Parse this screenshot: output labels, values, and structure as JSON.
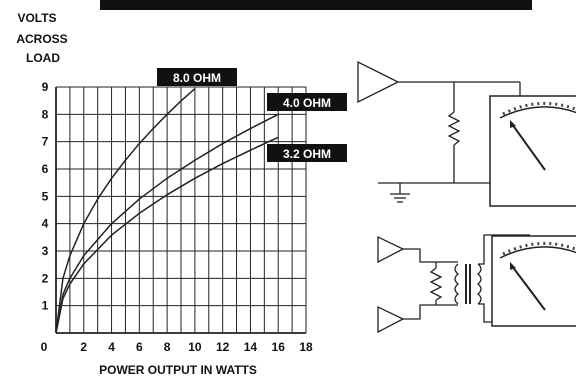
{
  "chart_data": {
    "type": "line",
    "ylabel_lines": [
      "VOLTS",
      "ACROSS",
      "LOAD"
    ],
    "xlabel": "POWER OUTPUT IN WATTS",
    "x_ticks": [
      "0",
      "2",
      "4",
      "6",
      "8",
      "10",
      "12",
      "14",
      "16",
      "18"
    ],
    "y_ticks": [
      "1",
      "2",
      "3",
      "4",
      "5",
      "6",
      "7",
      "8",
      "9"
    ],
    "xlim": [
      0,
      18
    ],
    "ylim": [
      0,
      9
    ],
    "grid": true,
    "series": [
      {
        "name": "8.0 OHM",
        "x": [
          0,
          0.5,
          1,
          2,
          3,
          4,
          5,
          6,
          7,
          8,
          9,
          10
        ],
        "y": [
          0,
          2.0,
          2.83,
          4.0,
          4.9,
          5.66,
          6.32,
          6.93,
          7.48,
          8.0,
          8.49,
          8.94
        ]
      },
      {
        "name": "4.0 OHM",
        "x": [
          0,
          0.5,
          1,
          2,
          4,
          6,
          8,
          10,
          12,
          14,
          16
        ],
        "y": [
          0,
          1.41,
          2.0,
          2.83,
          4.0,
          4.9,
          5.66,
          6.32,
          6.93,
          7.48,
          8.0
        ]
      },
      {
        "name": "3.2 OHM",
        "x": [
          0,
          0.5,
          1,
          2,
          4,
          6,
          8,
          10,
          12,
          14,
          16
        ],
        "y": [
          0,
          1.26,
          1.79,
          2.53,
          3.58,
          4.38,
          5.06,
          5.66,
          6.2,
          6.69,
          7.16
        ]
      }
    ]
  }
}
